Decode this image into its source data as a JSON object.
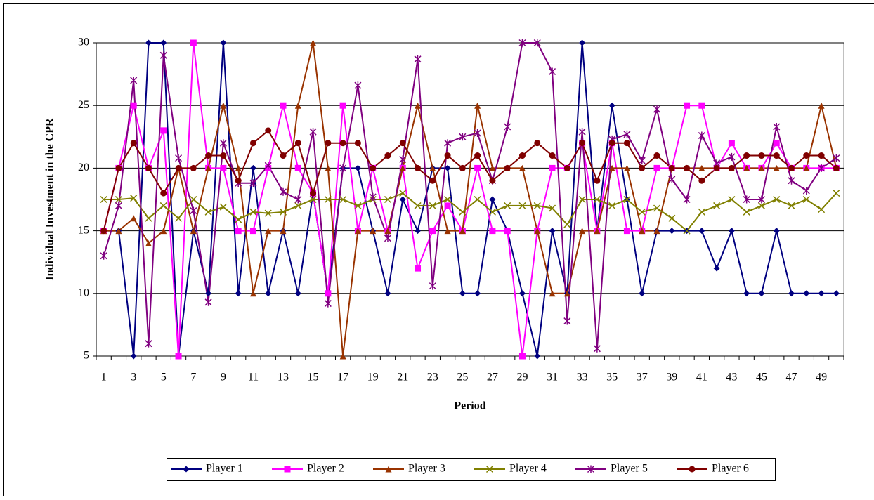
{
  "chart_data": {
    "type": "line",
    "y_label": "Individual Investment in the CPR",
    "x_label": "Period",
    "categories": [
      "1",
      null,
      "3",
      null,
      "5",
      null,
      "7",
      null,
      "9",
      null,
      "11",
      null,
      "13",
      null,
      "15",
      null,
      "17",
      null,
      "19",
      null,
      "21",
      null,
      "23",
      null,
      "25",
      null,
      "27",
      null,
      "29",
      null,
      "31",
      null,
      "33",
      null,
      "35",
      null,
      "37",
      null,
      "39",
      null,
      "41",
      null,
      "43",
      null,
      "45",
      null,
      "47",
      null,
      "49",
      null
    ],
    "ylim": [
      5,
      30
    ],
    "yticks": [
      5,
      10,
      15,
      20,
      25,
      30
    ],
    "grid": true,
    "legend": "bottom",
    "series": [
      {
        "name": "Player 1",
        "color": "#000080",
        "marker": "diamond",
        "values": [
          15,
          15,
          5,
          30,
          30,
          5,
          15,
          10,
          30,
          10,
          20,
          10,
          15,
          10,
          18,
          10,
          20,
          20,
          15,
          10,
          17.5,
          15,
          20,
          20,
          10,
          10,
          17.5,
          15,
          10,
          5,
          15,
          10,
          30,
          15,
          25,
          17.5,
          10,
          15,
          15,
          15,
          15,
          12,
          15,
          10,
          10,
          15,
          10,
          10,
          10,
          10
        ]
      },
      {
        "name": "Player 2",
        "color": "#ff00ff",
        "marker": "square",
        "values": [
          15,
          20,
          25,
          20,
          23,
          5,
          30,
          20,
          20,
          15,
          15,
          20,
          25,
          20,
          18,
          10,
          25,
          15,
          20,
          15,
          20,
          12,
          15,
          17,
          15,
          20,
          15,
          15,
          5,
          15,
          20,
          20,
          22,
          15,
          22,
          15,
          15,
          20,
          20,
          25,
          25,
          20,
          22,
          20,
          20,
          22,
          20,
          20,
          20,
          20
        ]
      },
      {
        "name": "Player 3",
        "color": "#993300",
        "marker": "triangle",
        "values": [
          15,
          15,
          16,
          14,
          15,
          20,
          15,
          20,
          25,
          20,
          10,
          15,
          15,
          25,
          30,
          20,
          5,
          15,
          15,
          15,
          20,
          25,
          20,
          15,
          15,
          25,
          20,
          20,
          20,
          15,
          10,
          10,
          15,
          15,
          20,
          20,
          15,
          15,
          20,
          20,
          20,
          20,
          20,
          20,
          20,
          20,
          20,
          20,
          25,
          20
        ]
      },
      {
        "name": "Player 4",
        "color": "#808000",
        "marker": "x",
        "values": [
          17.5,
          17.5,
          17.6,
          16,
          17,
          16,
          17.5,
          16.5,
          16.9,
          15.9,
          16.5,
          16.4,
          16.5,
          17,
          17.5,
          17.5,
          17.5,
          17,
          17.5,
          17.5,
          18,
          17,
          17,
          17.5,
          16.5,
          17.5,
          16.5,
          17,
          17,
          17,
          16.8,
          15.5,
          17.5,
          17.5,
          17,
          17.5,
          16.5,
          16.8,
          16,
          15,
          16.5,
          17,
          17.5,
          16.5,
          17,
          17.5,
          17,
          17.5,
          16.7,
          18
        ]
      },
      {
        "name": "Player 5",
        "color": "#800080",
        "marker": "star",
        "values": [
          13,
          17,
          27,
          6,
          29,
          20.8,
          16.6,
          9.3,
          22,
          18.8,
          18.8,
          20.2,
          18.1,
          17.5,
          22.9,
          9.2,
          20,
          26.6,
          17.7,
          14.4,
          20.7,
          28.7,
          10.6,
          22,
          22.5,
          22.8,
          19,
          23.3,
          30,
          30,
          27.7,
          7.8,
          22.9,
          5.6,
          22.3,
          22.7,
          20.6,
          24.7,
          19.1,
          17.5,
          22.6,
          20.4,
          20.9,
          17.5,
          17.5,
          23.3,
          19,
          18.2,
          20,
          20.8
        ]
      },
      {
        "name": "Player 6",
        "color": "#800000",
        "marker": "circle",
        "values": [
          15,
          20,
          22,
          20,
          18,
          20,
          20,
          21,
          21,
          19,
          22,
          23,
          21,
          22,
          18,
          22,
          22,
          22,
          20,
          21,
          22,
          20,
          19,
          21,
          20,
          21,
          19,
          20,
          21,
          22,
          21,
          20,
          22,
          19,
          22,
          22,
          20,
          21,
          20,
          20,
          19,
          20,
          20,
          21,
          21,
          21,
          20,
          21,
          21,
          20
        ]
      }
    ]
  }
}
